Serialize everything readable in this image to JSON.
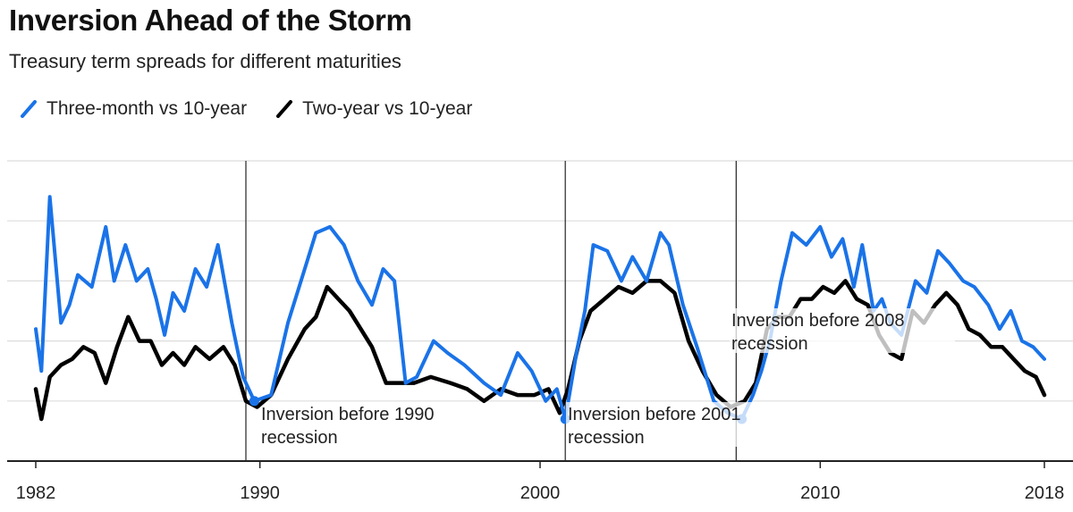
{
  "header": {
    "title": "Inversion Ahead of the Storm",
    "subtitle": "Treasury term spreads for different maturities"
  },
  "colors": {
    "three_month": "#1a73e8",
    "two_year": "#000000",
    "grid": "#dddddd",
    "axis": "#222222"
  },
  "chart_data": {
    "type": "line",
    "title": "Inversion Ahead of the Storm",
    "subtitle": "Treasury term spreads for different maturities",
    "xlabel": "",
    "ylabel": "",
    "xlim": [
      1982,
      2018
    ],
    "ylim": [
      -1,
      4
    ],
    "x_ticks": [
      1982,
      1990,
      2000,
      2010,
      2018
    ],
    "x_tick_labels": [
      "1982",
      "1990",
      "2000",
      "2010",
      "2018"
    ],
    "y_gridlines": [
      0,
      1,
      2,
      3,
      4
    ],
    "legend_position": "top-left",
    "series": [
      {
        "name": "Three-month vs 10-year",
        "color": "#1a73e8",
        "x": [
          1982.0,
          1982.2,
          1982.5,
          1982.9,
          1983.2,
          1983.5,
          1984.0,
          1984.5,
          1984.8,
          1985.2,
          1985.6,
          1986.0,
          1986.3,
          1986.6,
          1986.9,
          1987.3,
          1987.7,
          1988.1,
          1988.5,
          1989.0,
          1989.4,
          1989.8,
          1990.4,
          1991.0,
          1991.6,
          1992.0,
          1992.5,
          1993.0,
          1993.5,
          1994.0,
          1994.4,
          1994.8,
          1995.2,
          1995.6,
          1996.2,
          1996.7,
          1997.3,
          1998.0,
          1998.6,
          1999.2,
          1999.7,
          2000.2,
          2000.6,
          2000.9,
          2001.3,
          2001.6,
          2001.9,
          2002.4,
          2002.9,
          2003.3,
          2003.8,
          2004.3,
          2004.6,
          2005.1,
          2005.6,
          2006.2,
          2006.7,
          2007.2,
          2007.6,
          2007.9,
          2008.2,
          2008.6,
          2009.0,
          2009.5,
          2010.0,
          2010.4,
          2010.8,
          2011.2,
          2011.5,
          2011.9,
          2012.2,
          2012.5,
          2012.9,
          2013.4,
          2013.8,
          2014.2,
          2014.6,
          2015.1,
          2015.5,
          2016.0,
          2016.4,
          2016.8,
          2017.2,
          2017.6,
          2018.0
        ],
        "values": [
          1.2,
          0.5,
          3.4,
          1.3,
          1.6,
          2.1,
          1.9,
          2.9,
          2.0,
          2.6,
          2.0,
          2.2,
          1.7,
          1.1,
          1.8,
          1.5,
          2.2,
          1.9,
          2.6,
          1.3,
          0.4,
          0.0,
          0.1,
          1.3,
          2.2,
          2.8,
          2.9,
          2.6,
          2.0,
          1.6,
          2.2,
          2.0,
          0.3,
          0.4,
          1.0,
          0.8,
          0.6,
          0.3,
          0.1,
          0.8,
          0.5,
          0.0,
          0.2,
          -0.3,
          0.8,
          1.5,
          2.6,
          2.5,
          2.0,
          2.4,
          2.0,
          2.8,
          2.6,
          1.6,
          0.9,
          0.0,
          -0.2,
          -0.3,
          0.1,
          0.5,
          1.0,
          2.0,
          2.8,
          2.6,
          2.9,
          2.4,
          2.7,
          1.9,
          2.6,
          1.5,
          1.7,
          1.3,
          1.1,
          2.0,
          1.8,
          2.5,
          2.3,
          2.0,
          1.9,
          1.6,
          1.2,
          1.5,
          1.0,
          0.9,
          0.7
        ]
      },
      {
        "name": "Two-year vs 10-year",
        "color": "#000000",
        "x": [
          1982.0,
          1982.2,
          1982.5,
          1982.9,
          1983.3,
          1983.7,
          1984.1,
          1984.5,
          1984.9,
          1985.3,
          1985.7,
          1986.1,
          1986.5,
          1986.9,
          1987.3,
          1987.7,
          1988.2,
          1988.7,
          1989.1,
          1989.5,
          1989.9,
          1990.4,
          1991.0,
          1991.6,
          1992.0,
          1992.4,
          1992.8,
          1993.2,
          1993.6,
          1994.0,
          1994.5,
          1995.0,
          1995.5,
          1996.1,
          1996.8,
          1997.4,
          1998.0,
          1998.6,
          1999.2,
          1999.8,
          2000.3,
          2000.7,
          2001.0,
          2001.4,
          2001.8,
          2002.3,
          2002.8,
          2003.3,
          2003.8,
          2004.3,
          2004.8,
          2005.3,
          2005.8,
          2006.3,
          2006.8,
          2007.3,
          2007.7,
          2008.1,
          2008.5,
          2008.9,
          2009.3,
          2009.7,
          2010.1,
          2010.5,
          2010.9,
          2011.3,
          2011.7,
          2012.1,
          2012.5,
          2012.9,
          2013.3,
          2013.7,
          2014.1,
          2014.5,
          2014.9,
          2015.3,
          2015.7,
          2016.1,
          2016.5,
          2016.9,
          2017.3,
          2017.7,
          2018.0
        ],
        "values": [
          0.2,
          -0.3,
          0.4,
          0.6,
          0.7,
          0.9,
          0.8,
          0.3,
          0.9,
          1.4,
          1.0,
          1.0,
          0.6,
          0.8,
          0.6,
          0.9,
          0.7,
          0.9,
          0.6,
          0.0,
          -0.1,
          0.1,
          0.7,
          1.2,
          1.4,
          1.9,
          1.7,
          1.5,
          1.2,
          0.9,
          0.3,
          0.3,
          0.3,
          0.4,
          0.3,
          0.2,
          0.0,
          0.2,
          0.1,
          0.1,
          0.2,
          -0.2,
          0.2,
          1.0,
          1.5,
          1.7,
          1.9,
          1.8,
          2.0,
          2.0,
          1.8,
          1.0,
          0.5,
          0.1,
          -0.1,
          0.0,
          0.3,
          1.2,
          1.4,
          1.4,
          1.7,
          1.7,
          1.9,
          1.8,
          2.0,
          1.7,
          1.6,
          1.1,
          0.8,
          0.7,
          1.5,
          1.3,
          1.6,
          1.8,
          1.6,
          1.2,
          1.1,
          0.9,
          0.9,
          0.7,
          0.5,
          0.4,
          0.1
        ]
      }
    ],
    "recession_markers": [
      1989.5,
      2000.9,
      2007.0
    ],
    "annotations": [
      {
        "line1": "Inversion before 1990",
        "line2": "recession"
      },
      {
        "line1": "Inversion before 2001",
        "line2": "recession"
      },
      {
        "line1": "Inversion before 2008",
        "line2": "recession"
      }
    ]
  }
}
